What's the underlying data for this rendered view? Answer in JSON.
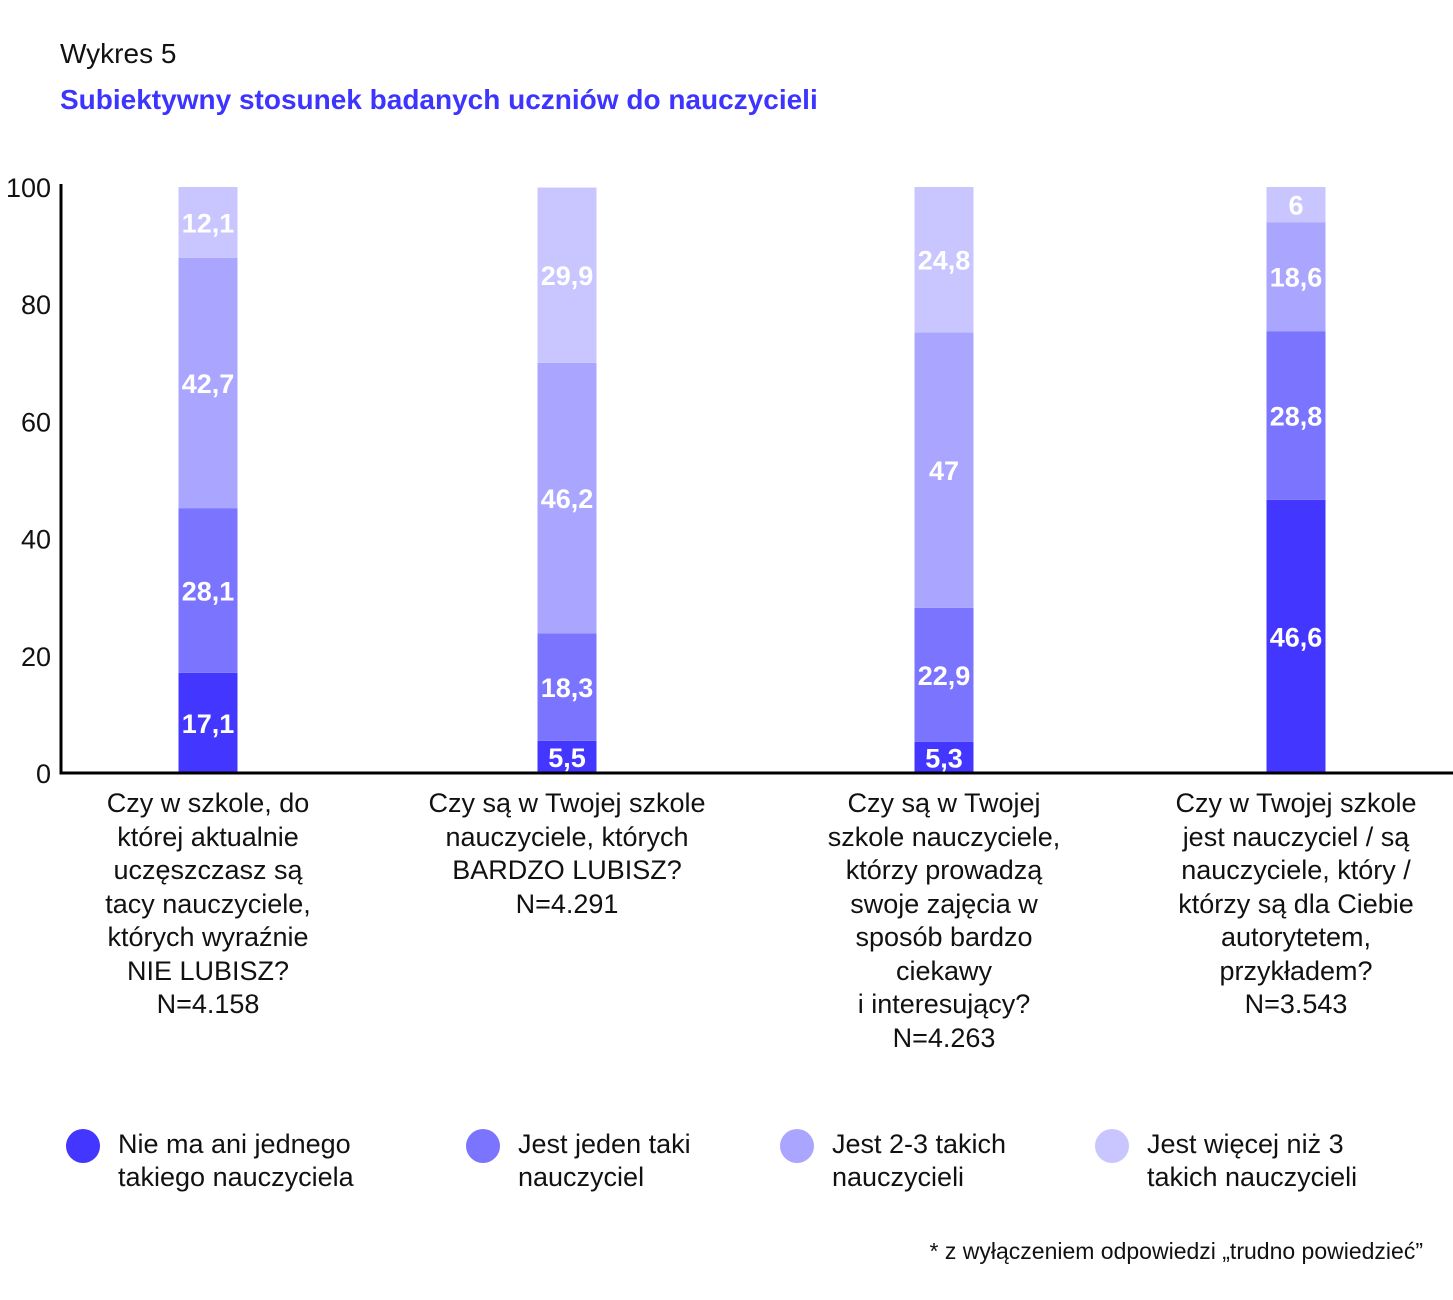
{
  "header": {
    "label": "Wykres 5",
    "title": "Subiektywny stosunek badanych uczniów do nauczycieli"
  },
  "chart_data": {
    "type": "bar",
    "stacked": true,
    "title": "Subiektywny stosunek badanych uczniów do nauczycieli",
    "ylim": [
      0,
      100
    ],
    "yticks": [
      "0",
      "20",
      "40",
      "60",
      "80",
      "100"
    ],
    "categories": [
      "Czy w szkole, do\nktórej aktualnie\nuczęszczasz są\ntacy nauczyciele,\nktórych wyraźnie\nNIE LUBISZ?\nN=4.158",
      "Czy są w Twojej szkole\nnauczyciele, których\nBARDZO LUBISZ?\nN=4.291",
      "Czy są w Twojej\nszkole nauczyciele,\nktórzy prowadzą\nswoje zajęcia w\nsposób bardzo\nciekawy\ni interesujący?\nN=4.263",
      "Czy w Twojej szkole\njest nauczyciel / są\nnauczyciele, który /\nktórzy są dla Ciebie\nautorytetem,\nprzykładem?\nN=3.543"
    ],
    "series": [
      {
        "name": "Nie ma ani jednego\ntakiego nauczyciela",
        "color": "#4336ff",
        "values": [
          17.1,
          5.5,
          5.3,
          46.6
        ],
        "labels": [
          "17,1",
          "5,5",
          "5,3",
          "46,6"
        ]
      },
      {
        "name": "Jest jeden taki\nnauczyciel",
        "color": "#7b74ff",
        "values": [
          28.1,
          18.3,
          22.9,
          28.8
        ],
        "labels": [
          "28,1",
          "18,3",
          "22,9",
          "28,8"
        ]
      },
      {
        "name": "Jest 2-3 takich\nnauczycieli",
        "color": "#aaa5ff",
        "values": [
          42.7,
          46.2,
          47,
          18.6
        ],
        "labels": [
          "42,7",
          "46,2",
          "47",
          "18,6"
        ]
      },
      {
        "name": "Jest więcej niż 3\ntakich nauczycieli",
        "color": "#c8c5ff",
        "values": [
          12.1,
          29.9,
          24.8,
          6
        ],
        "labels": [
          "12,1",
          "29,9",
          "24,8",
          "6"
        ]
      }
    ]
  },
  "footnote": "* z wyłączeniem odpowiedzi „trudno powiedzieć”"
}
